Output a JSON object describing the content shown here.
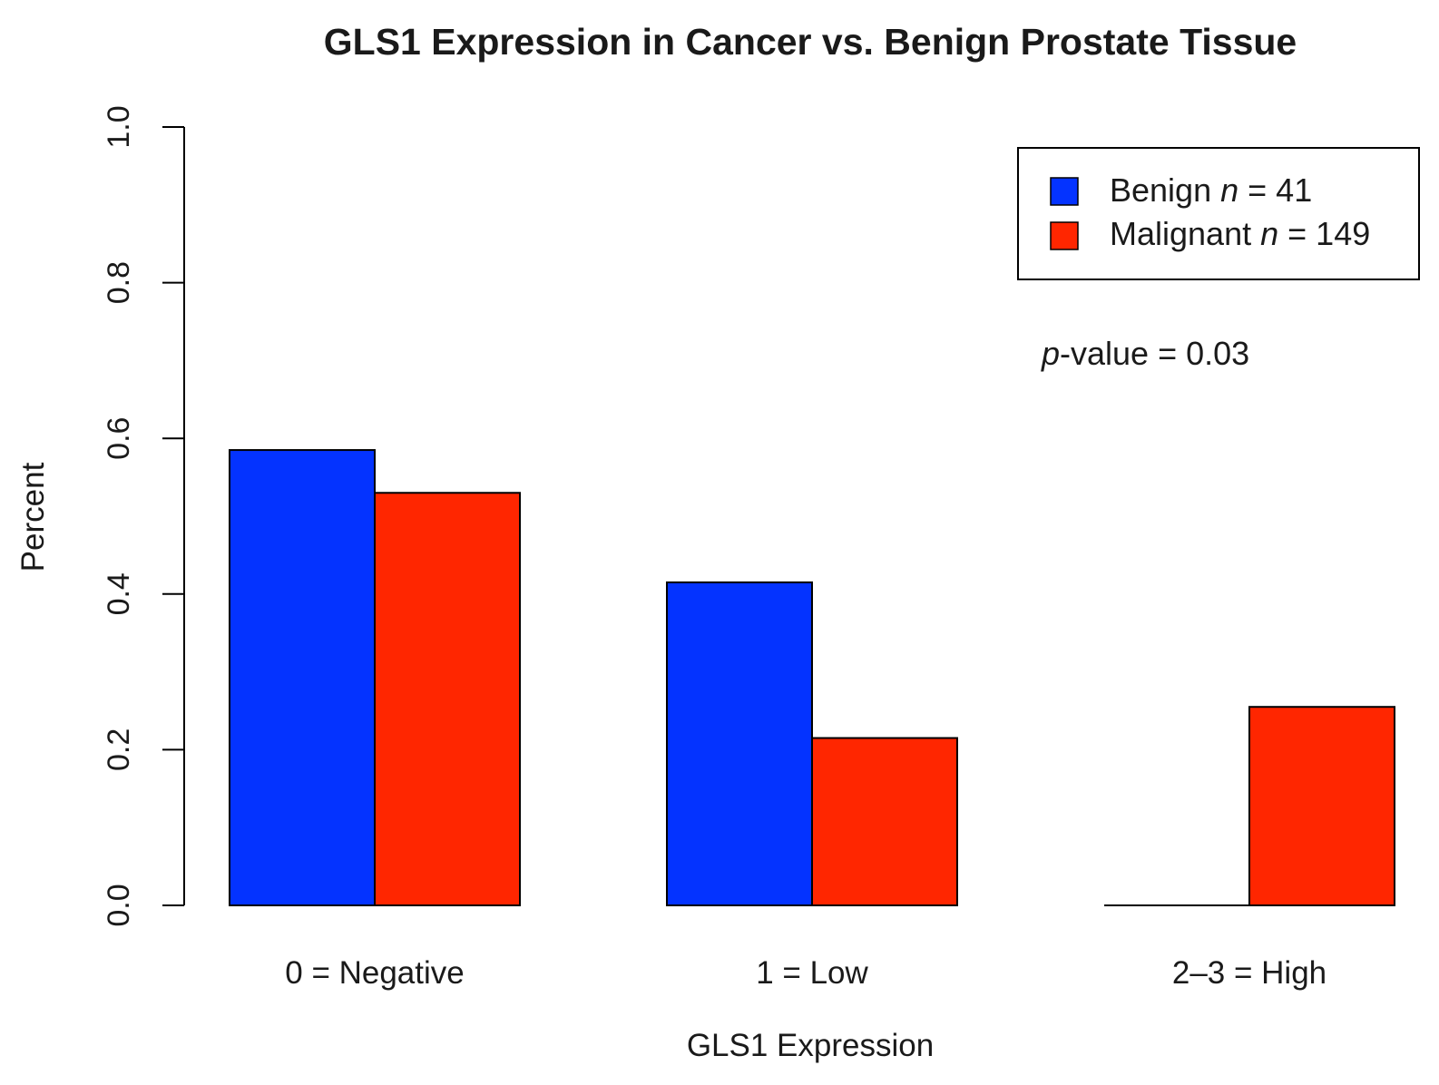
{
  "chart_data": {
    "type": "bar",
    "title": "GLS1 Expression in Cancer vs. Benign Prostate Tissue",
    "xlabel": "GLS1 Expression",
    "ylabel": "Percent",
    "ylim": [
      0,
      1
    ],
    "yticks": [
      "0.0",
      "0.2",
      "0.4",
      "0.6",
      "0.8",
      "1.0"
    ],
    "categories": [
      "0 = Negative",
      "1 = Low",
      "2–3 = High"
    ],
    "series": [
      {
        "name": "Benign",
        "legend_prefix": "Benign ",
        "n_label": "n",
        "n_text": " = 41",
        "color": "#0433ff",
        "values": [
          0.585,
          0.415,
          0.0
        ]
      },
      {
        "name": "Malignant",
        "legend_prefix": "Malignant ",
        "n_label": "n",
        "n_text": " = 149",
        "color": "#ff2600",
        "values": [
          0.53,
          0.215,
          0.255
        ]
      }
    ],
    "annotation": {
      "italic": "p",
      "text": "-value = 0.03"
    },
    "legend_position": "top-right",
    "grid": false
  }
}
